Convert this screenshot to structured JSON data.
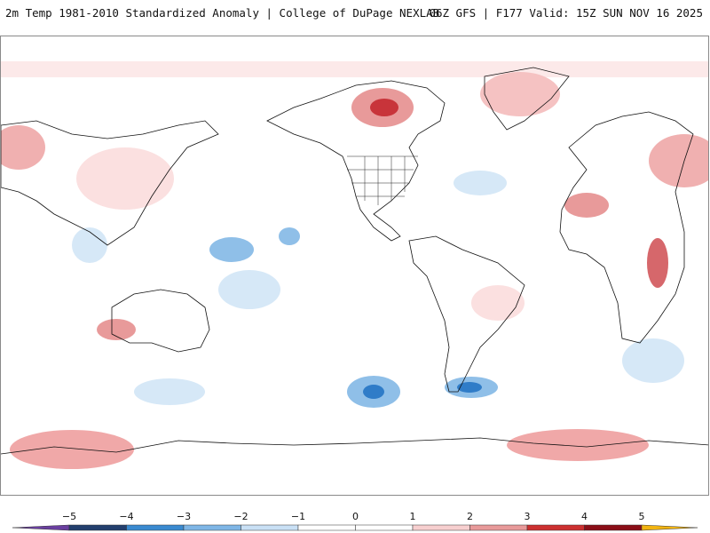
{
  "header": {
    "title": "2m Temp 1981-2010 Standardized Anomaly | College of DuPage NEXLAB",
    "run_info": "06Z GFS | F177 Valid: 15Z SUN NOV 16 2025"
  },
  "colorbar": {
    "ticks": [
      {
        "label": "−5",
        "value": -5
      },
      {
        "label": "−4",
        "value": -4
      },
      {
        "label": "−3",
        "value": -3
      },
      {
        "label": "−2",
        "value": -2
      },
      {
        "label": "−1",
        "value": -1
      },
      {
        "label": "0",
        "value": 0
      },
      {
        "label": "1",
        "value": 1
      },
      {
        "label": "2",
        "value": 2
      },
      {
        "label": "3",
        "value": 3
      },
      {
        "label": "4",
        "value": 4
      },
      {
        "label": "5",
        "value": 5
      }
    ],
    "segments": [
      {
        "from": -6,
        "to": -5,
        "color": "#6a3fa0"
      },
      {
        "from": -5,
        "to": -4,
        "color": "#233f6e"
      },
      {
        "from": -4,
        "to": -3,
        "color": "#3a8ad0"
      },
      {
        "from": -3,
        "to": -2,
        "color": "#7fb6e6"
      },
      {
        "from": -2,
        "to": -1,
        "color": "#c9e0f5"
      },
      {
        "from": -1,
        "to": 0,
        "color": "#ffffff"
      },
      {
        "from": 0,
        "to": 1,
        "color": "#ffffff"
      },
      {
        "from": 1,
        "to": 2,
        "color": "#f7cfcf"
      },
      {
        "from": 2,
        "to": 3,
        "color": "#e89a9a"
      },
      {
        "from": 3,
        "to": 4,
        "color": "#cc3030"
      },
      {
        "from": 4,
        "to": 5,
        "color": "#8b0e17"
      },
      {
        "from": 5,
        "to": 6,
        "color": "#f2b411"
      }
    ]
  },
  "colors": {
    "warm_light": "#fbe0e0",
    "warm_mid": "#f0a8a8",
    "warm_strong": "#c8343a",
    "cool_light": "#d6e8f7",
    "cool_mid": "#8fbfe8",
    "cool_strong": "#2f7cc8",
    "coastline": "#111111"
  }
}
